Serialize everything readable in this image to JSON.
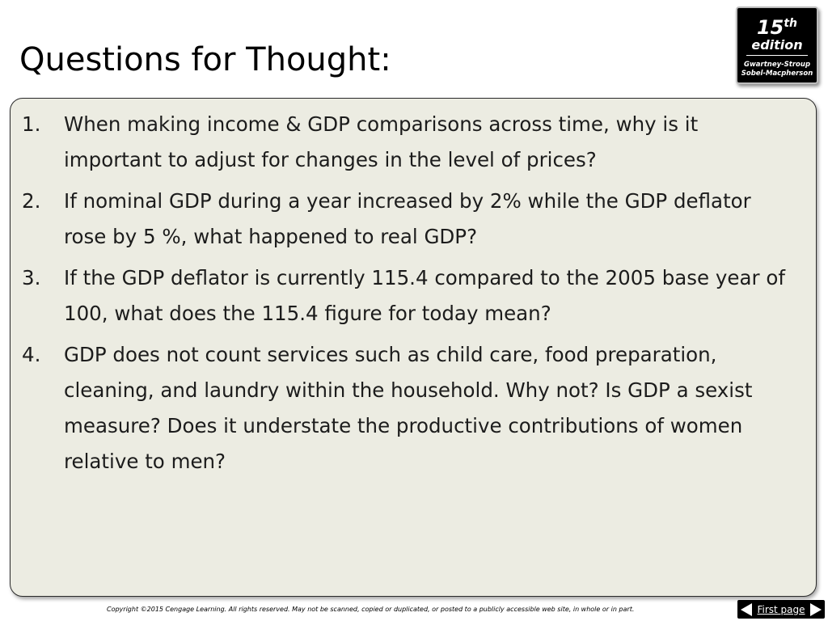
{
  "title": "Questions for Thought:",
  "badge": {
    "number": "15",
    "suffix": "th",
    "edition": "edition",
    "authors_line1": "Gwartney-Stroup",
    "authors_line2": "Sobel-Macpherson"
  },
  "questions": [
    {
      "number": "1.",
      "text": "When making income & GDP comparisons across time, why is it important to adjust for changes in the level of prices?"
    },
    {
      "number": "2.",
      "text": "If nominal GDP during a year increased by 2% while the GDP deflator rose by 5 %, what happened to real GDP?"
    },
    {
      "number": "3.",
      "text": "If the GDP deflator is currently 115.4 compared to the 2005 base year of 100, what does the 115.4 figure for today mean?"
    },
    {
      "number": "4.",
      "text": "GDP does not count services such as child care, food preparation, cleaning, and laundry within the household. Why not? Is GDP a sexist measure? Does it understate the productive contributions of women relative to men?"
    }
  ],
  "footer": {
    "copyright": "Copyright ©2015 Cengage Learning. All rights reserved. May not be scanned, copied or duplicated, or posted to a publicly accessible web site, in whole or in part."
  },
  "nav": {
    "first_page_label": "First page"
  },
  "colors": {
    "content_background": "#ecece2",
    "badge_background": "#000000",
    "text": "#1c1c1c"
  }
}
